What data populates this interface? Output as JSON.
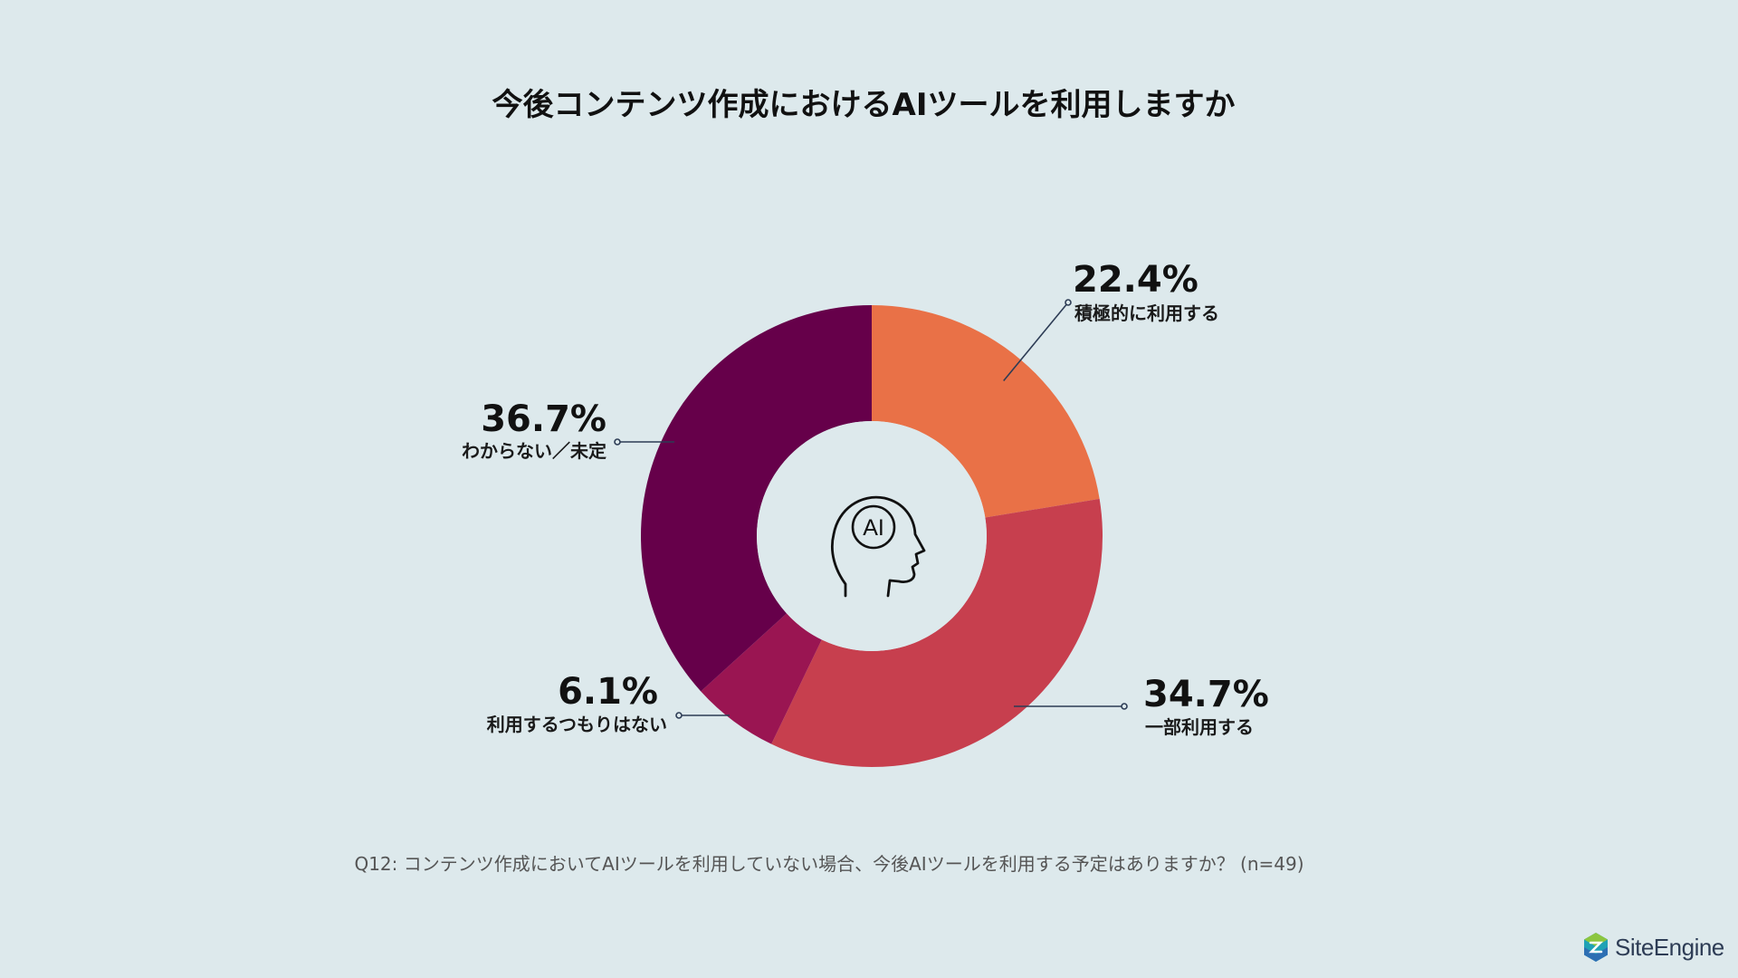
{
  "title": "今後コンテンツ作成におけるAIツールを利用しますか",
  "chart_data": {
    "type": "donut",
    "title": "今後コンテンツ作成におけるAIツールを利用しますか",
    "categories": [
      "積極的に利用する",
      "一部利用する",
      "利用するつもりはない",
      "わからない／未定"
    ],
    "values": [
      22.4,
      34.7,
      6.1,
      36.7
    ],
    "value_labels": [
      "22.4%",
      "34.7%",
      "6.1%",
      "36.7%"
    ],
    "colors": [
      "#e97147",
      "#c73f4e",
      "#9a1552",
      "#66004a"
    ],
    "center_icon": "ai-head-icon",
    "legend": "callout-labels"
  },
  "footnote": "Q12: コンテンツ作成においてAIツールを利用していない場合、今後AIツールを利用する予定はありますか？ (n=49)",
  "logo": {
    "text": "SiteEngine",
    "icon": "siteengine-logo-icon",
    "color": "#2d3c55"
  }
}
